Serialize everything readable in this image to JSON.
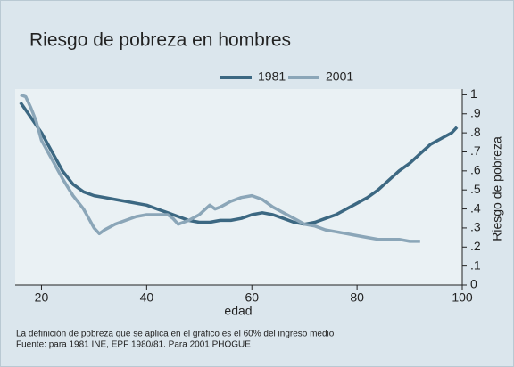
{
  "chart_data": {
    "type": "line",
    "title": "Riesgo de pobreza en hombres",
    "xlabel": "edad",
    "ylabel": "Riesgo de pobreza",
    "notes": [
      "La definición de pobreza que se aplica en el gráfico es el 60% del ingreso medio",
      "Fuente: para 1981 INE, EPF 1980/81. Para 2001 PHOGUE"
    ],
    "xlim": [
      15,
      100
    ],
    "xticks": [
      20,
      40,
      60,
      80,
      100
    ],
    "ylim": [
      0,
      1.03
    ],
    "yticks": [
      0,
      {
        "value": 0.1,
        "label": ".1"
      },
      {
        "value": 0.2,
        "label": ".2"
      },
      {
        "value": 0.3,
        "label": ".3"
      },
      {
        "value": 0.4,
        "label": ".4"
      },
      {
        "value": 0.5,
        "label": ".5"
      },
      {
        "value": 0.6,
        "label": ".6"
      },
      {
        "value": 0.7,
        "label": ".7"
      },
      {
        "value": 0.8,
        "label": ".8"
      },
      {
        "value": 0.9,
        "label": ".9"
      },
      1
    ],
    "series": [
      {
        "name": "1981",
        "color": "#3c6882",
        "x": [
          16,
          18,
          20,
          22,
          24,
          26,
          28,
          30,
          32,
          34,
          36,
          38,
          40,
          42,
          44,
          46,
          48,
          50,
          52,
          54,
          56,
          58,
          60,
          62,
          64,
          66,
          68,
          70,
          72,
          74,
          76,
          78,
          80,
          82,
          84,
          86,
          88,
          90,
          92,
          94,
          96,
          98,
          99
        ],
        "values": [
          0.96,
          0.88,
          0.8,
          0.7,
          0.6,
          0.53,
          0.49,
          0.47,
          0.46,
          0.45,
          0.44,
          0.43,
          0.42,
          0.4,
          0.38,
          0.36,
          0.34,
          0.33,
          0.33,
          0.34,
          0.34,
          0.35,
          0.37,
          0.38,
          0.37,
          0.35,
          0.33,
          0.32,
          0.33,
          0.35,
          0.37,
          0.4,
          0.43,
          0.46,
          0.5,
          0.55,
          0.6,
          0.64,
          0.69,
          0.74,
          0.77,
          0.8,
          0.83
        ]
      },
      {
        "name": "2001",
        "color": "#8ba6b8",
        "x": [
          16,
          17,
          18,
          19,
          20,
          22,
          24,
          26,
          28,
          29,
          30,
          31,
          32,
          34,
          36,
          38,
          40,
          42,
          44,
          45,
          46,
          48,
          50,
          52,
          53,
          54,
          56,
          58,
          60,
          62,
          64,
          66,
          68,
          70,
          72,
          74,
          76,
          78,
          80,
          82,
          84,
          86,
          88,
          90,
          92
        ],
        "values": [
          1.0,
          0.99,
          0.93,
          0.86,
          0.76,
          0.66,
          0.56,
          0.47,
          0.4,
          0.35,
          0.3,
          0.27,
          0.29,
          0.32,
          0.34,
          0.36,
          0.37,
          0.37,
          0.37,
          0.35,
          0.32,
          0.34,
          0.37,
          0.42,
          0.4,
          0.41,
          0.44,
          0.46,
          0.47,
          0.45,
          0.41,
          0.38,
          0.35,
          0.32,
          0.31,
          0.29,
          0.28,
          0.27,
          0.26,
          0.25,
          0.24,
          0.24,
          0.24,
          0.23,
          0.23
        ]
      }
    ]
  }
}
